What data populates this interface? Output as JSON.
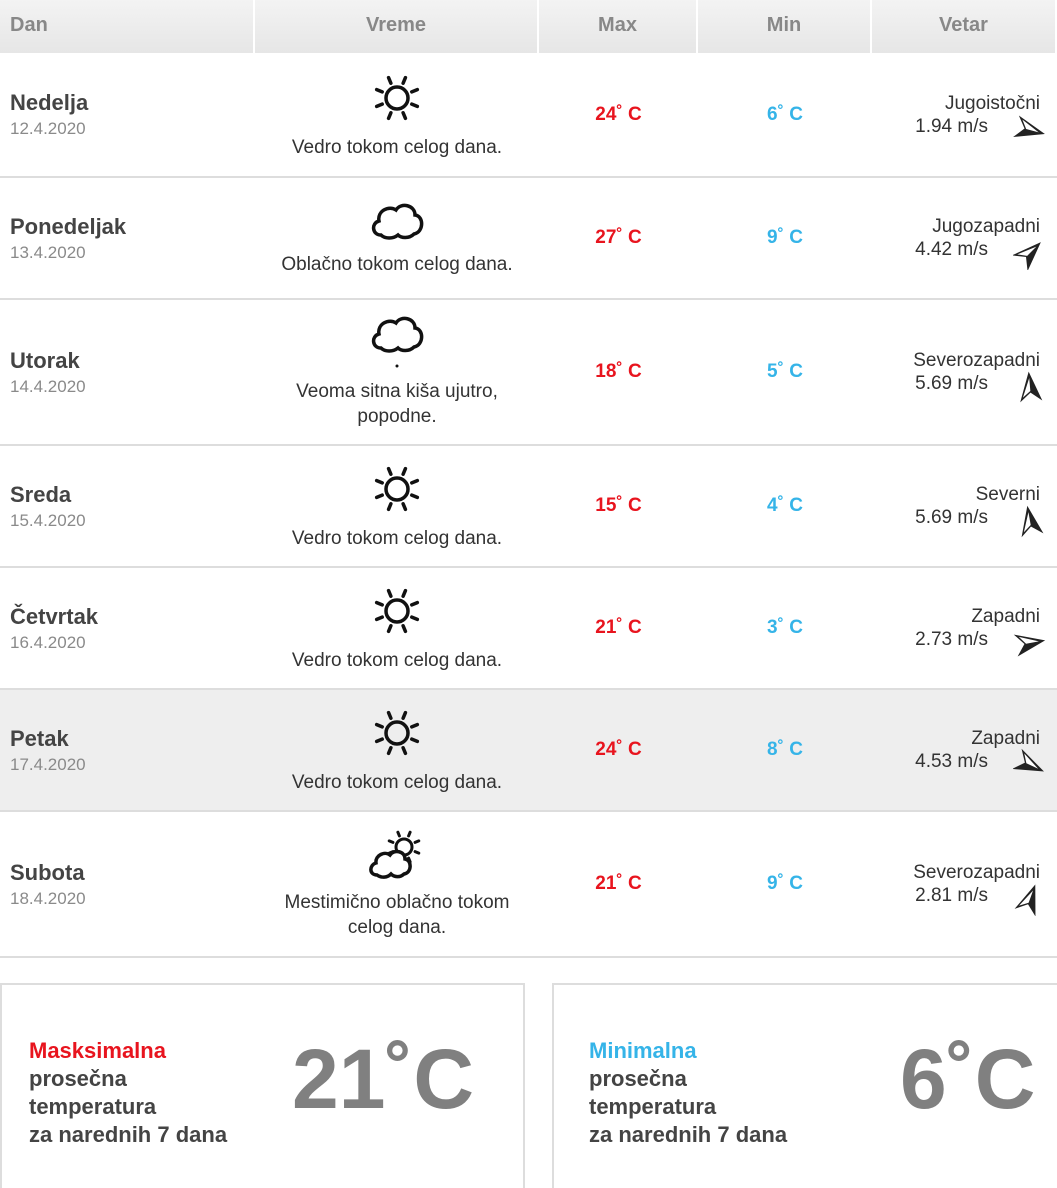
{
  "header": {
    "day": "Dan",
    "weather": "Vreme",
    "max": "Max",
    "min": "Min",
    "wind": "Vetar"
  },
  "colors": {
    "max": "#e8141e",
    "min": "#35b4e8"
  },
  "rows": [
    {
      "day": "Nedelja",
      "date": "12.4.2020",
      "icon": "sun-icon",
      "desc": "Vedro tokom celog dana.",
      "max": "24˚ C",
      "min": "6˚ C",
      "wind_dir": "Jugoistočni",
      "wind_speed": "1.94 m/s",
      "arrow_deg": 105
    },
    {
      "day": "Ponedeljak",
      "date": "13.4.2020",
      "icon": "cloud-icon",
      "desc": "Oblačno tokom celog dana.",
      "max": "27˚ C",
      "min": "9˚ C",
      "wind_dir": "Jugozapadni",
      "wind_speed": "4.42 m/s",
      "arrow_deg": 45
    },
    {
      "day": "Utorak",
      "date": "14.4.2020",
      "icon": "drizzle-icon",
      "desc": "Veoma sitna kiša ujutro, popodne.",
      "max": "18˚ C",
      "min": "5˚ C",
      "wind_dir": "Severozapadni",
      "wind_speed": "5.69 m/s",
      "arrow_deg": -5
    },
    {
      "day": "Sreda",
      "date": "15.4.2020",
      "icon": "sun-icon",
      "desc": "Vedro tokom celog dana.",
      "max": "15˚ C",
      "min": "4˚ C",
      "wind_dir": "Severni",
      "wind_speed": "5.69 m/s",
      "arrow_deg": -10
    },
    {
      "day": "Četvrtak",
      "date": "16.4.2020",
      "icon": "sun-icon",
      "desc": "Vedro tokom celog dana.",
      "max": "21˚ C",
      "min": "3˚ C",
      "wind_dir": "Zapadni",
      "wind_speed": "2.73 m/s",
      "arrow_deg": 80
    },
    {
      "day": "Petak",
      "date": "17.4.2020",
      "icon": "sun-icon",
      "desc": "Vedro tokom celog dana.",
      "max": "24˚ C",
      "min": "8˚ C",
      "wind_dir": "Zapadni",
      "wind_speed": "4.53 m/s",
      "arrow_deg": 115,
      "highlighted": true
    },
    {
      "day": "Subota",
      "date": "18.4.2020",
      "icon": "partly-cloudy-icon",
      "desc": "Mestimično oblačno tokom celog dana.",
      "max": "21˚ C",
      "min": "9˚ C",
      "wind_dir": "Severozapadni",
      "wind_speed": "2.81 m/s",
      "arrow_deg": 20
    }
  ],
  "summary": {
    "max": {
      "accent": "Masksimalna",
      "text": [
        "prosečna",
        "temperatura",
        "za narednih 7 dana"
      ],
      "value": "21˚C"
    },
    "min": {
      "accent": "Minimalna",
      "text": [
        "prosečna",
        "temperatura",
        "za narednih 7 dana"
      ],
      "value": "6˚C"
    }
  }
}
